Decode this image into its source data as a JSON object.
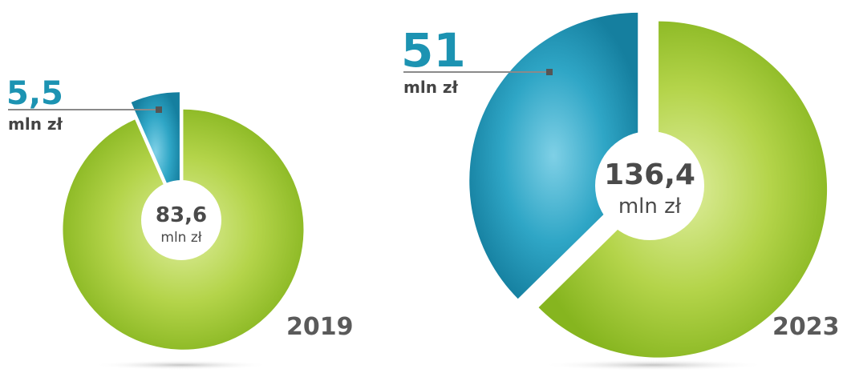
{
  "chart_data": [
    {
      "type": "pie",
      "year": "2019",
      "total": {
        "value": "83,6",
        "unit": "mln zł"
      },
      "slices": [
        {
          "value": 5.5,
          "color": "#1c93b2"
        },
        {
          "value": 78.1,
          "color": "#8ebd28"
        }
      ],
      "callout": {
        "value": "5,5",
        "unit": "mln zł"
      }
    },
    {
      "type": "pie",
      "year": "2023",
      "total": {
        "value": "136,4",
        "unit": "mln zł"
      },
      "slices": [
        {
          "value": 51,
          "color": "#1c93b2"
        },
        {
          "value": 85.4,
          "color": "#8ebd28"
        }
      ],
      "callout": {
        "value": "51",
        "unit": "mln zł"
      }
    }
  ]
}
